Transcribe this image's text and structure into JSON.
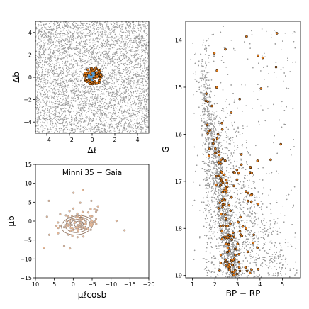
{
  "chart_data": [
    {
      "type": "scatter",
      "panel": "spatial",
      "xlabel": "Δℓ",
      "ylabel": "Δb",
      "xlim": [
        -5,
        5
      ],
      "ylim": [
        -5,
        5
      ],
      "xticks": [
        "−4",
        "−2",
        "0",
        "2",
        "4"
      ],
      "yticks": [
        "4",
        "2",
        "0",
        "−2",
        "−4"
      ],
      "xtick_values": [
        -4,
        -2,
        0,
        2,
        4
      ],
      "ytick_values": [
        4,
        2,
        0,
        -2,
        -4
      ],
      "series": [
        {
          "role": "field",
          "color": "#9a9a9a",
          "approx_count": 4500,
          "distribution": "uniform"
        },
        {
          "role": "members",
          "color": "#e07a1a",
          "edge": "#000000",
          "approx_count": 90,
          "center": [
            0.1,
            0.1
          ],
          "radius": 0.8
        },
        {
          "role": "core",
          "color": "#4f9bd9",
          "approx_count": 12,
          "center": [
            0.0,
            0.1
          ],
          "radius": 0.35
        }
      ]
    },
    {
      "type": "scatter",
      "panel": "proper-motion",
      "title": "Minni 35  −  Gaia",
      "xlabel": "μℓcosb",
      "ylabel": "μb",
      "xlim": [
        10,
        -20
      ],
      "ylim": [
        -15,
        15
      ],
      "xticks": [
        "10",
        "5",
        "0",
        "−5",
        "−10",
        "−15",
        "−20"
      ],
      "yticks": [
        "15",
        "10",
        "5",
        "0",
        "−5",
        "−10",
        "−15"
      ],
      "xtick_values": [
        10,
        5,
        0,
        -5,
        -10,
        -15,
        -20
      ],
      "ytick_values": [
        15,
        10,
        5,
        0,
        -5,
        -10,
        -15
      ],
      "series": [
        {
          "role": "members",
          "color": "#e8b896",
          "edge": "#8a8a8a",
          "approx_count": 110,
          "center": [
            -1.5,
            -0.5
          ]
        }
      ],
      "contours": {
        "color": "#8a6a55",
        "center": [
          -1.5,
          -0.8
        ],
        "radii": [
          [
            1.2,
            0.8
          ],
          [
            2.2,
            1.4
          ],
          [
            3.2,
            2.0
          ],
          [
            4.2,
            2.5
          ]
        ]
      }
    },
    {
      "type": "scatter",
      "panel": "cmd",
      "xlabel": "BP − RP",
      "ylabel": "G",
      "xlim": [
        0.7,
        5.8
      ],
      "ylim": [
        19.05,
        13.6
      ],
      "xticks": [
        "1",
        "2",
        "3",
        "4",
        "5"
      ],
      "yticks": [
        "14",
        "15",
        "16",
        "17",
        "18",
        "19"
      ],
      "xtick_values": [
        1,
        2,
        3,
        4,
        5
      ],
      "ytick_values": [
        14,
        15,
        16,
        17,
        18,
        19
      ],
      "series": [
        {
          "role": "field",
          "color": "#9a9a9a",
          "approx_count": 9000
        },
        {
          "role": "members",
          "color": "#e07a1a",
          "edge": "#000000",
          "approx_count": 170
        }
      ]
    }
  ]
}
